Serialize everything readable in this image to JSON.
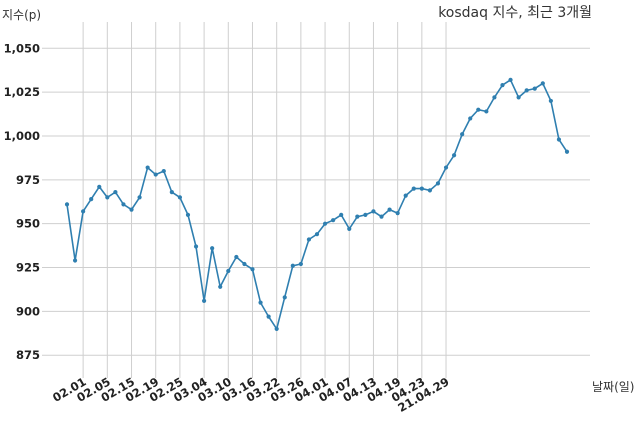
{
  "chart_data": {
    "type": "line",
    "title": "kosdaq 지수, 최근 3개월",
    "xlabel": "날짜(일)",
    "ylabel": "지수(p)",
    "ylim": [
      862,
      1065
    ],
    "yticks": [
      875,
      900,
      925,
      950,
      975,
      1000,
      1025,
      1050
    ],
    "ytick_labels": [
      "875",
      "900",
      "925",
      "950",
      "975",
      "1,000",
      "1,025",
      "1,050"
    ],
    "grid": true,
    "line_color": "#2f7fb0",
    "grid_color": "#cfcfcf",
    "x_tick_labels": [
      {
        "index": 2,
        "label": "02.01"
      },
      {
        "index": 5,
        "label": "02.05"
      },
      {
        "index": 8,
        "label": "02.15"
      },
      {
        "index": 11,
        "label": "02.19"
      },
      {
        "index": 14,
        "label": "02.25"
      },
      {
        "index": 17,
        "label": "03.04"
      },
      {
        "index": 20,
        "label": "03.10"
      },
      {
        "index": 23,
        "label": "03.16"
      },
      {
        "index": 26,
        "label": "03.22"
      },
      {
        "index": 29,
        "label": "03.26"
      },
      {
        "index": 32,
        "label": "04.01"
      },
      {
        "index": 35,
        "label": "04.07"
      },
      {
        "index": 38,
        "label": "04.13"
      },
      {
        "index": 41,
        "label": "04.19"
      },
      {
        "index": 44,
        "label": "04.23"
      },
      {
        "index": 47,
        "label": "21.04.29"
      }
    ],
    "series": [
      {
        "values": [
          961,
          929,
          957,
          964,
          971,
          965,
          968,
          961,
          958,
          965,
          982,
          978,
          980,
          968,
          965,
          955,
          937,
          906,
          936,
          914,
          923,
          931,
          927,
          924,
          905,
          897,
          890,
          908,
          926,
          927,
          941,
          944,
          950,
          952,
          955,
          947,
          954,
          955,
          957,
          954,
          958,
          956,
          966,
          970,
          970,
          969,
          973,
          982,
          989,
          1001,
          1010,
          1015,
          1014,
          1022,
          1029,
          1032,
          1022,
          1026,
          1027,
          1030,
          1020,
          998,
          991
        ]
      }
    ]
  }
}
